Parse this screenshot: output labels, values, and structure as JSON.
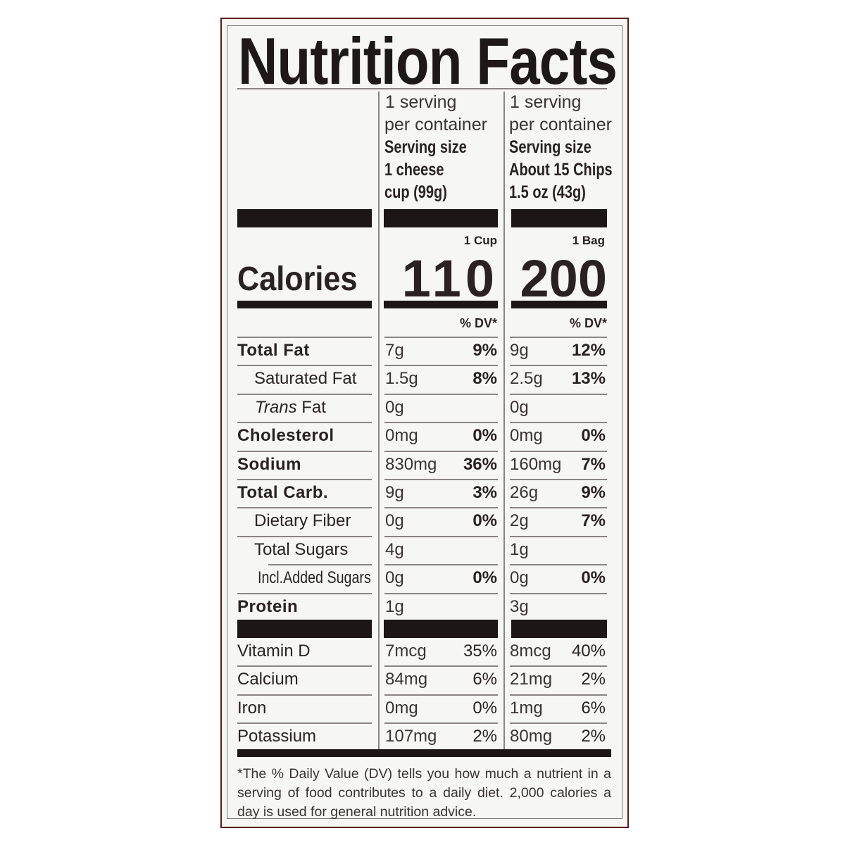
{
  "title": "Nutrition Facts",
  "columns": [
    {
      "servings": "1 serving",
      "per_container": "per container",
      "serving_size_label": "Serving size",
      "serving_size_line1": "1 cheese",
      "serving_size_line2": "cup (99g)",
      "unit": "1 Cup",
      "calories": "110",
      "dv_header": "% DV*"
    },
    {
      "servings": "1 serving",
      "per_container": "per container",
      "serving_size_label": "Serving size",
      "serving_size_line1": "About 15 Chips",
      "serving_size_line2": "1.5 oz (43g)",
      "unit": "1 Bag",
      "calories": "200",
      "dv_header": "% DV*"
    }
  ],
  "calories_label": "Calories",
  "nutrients": [
    {
      "label": "Total Fat",
      "style": "bold",
      "c1": "7g",
      "c1_dv": "9%",
      "c2": "9g",
      "c2_dv": "12%"
    },
    {
      "label": "Saturated Fat",
      "style": "indent",
      "c1": "1.5g",
      "c1_dv": "8%",
      "c2": "2.5g",
      "c2_dv": "13%"
    },
    {
      "label_italic": "Trans",
      "label": " Fat",
      "style": "trans",
      "c1": "0g",
      "c1_dv": "",
      "c2": "0g",
      "c2_dv": ""
    },
    {
      "label": "Cholesterol",
      "style": "bold",
      "c1": "0mg",
      "c1_dv": "0%",
      "c2": "0mg",
      "c2_dv": "0%"
    },
    {
      "label": "Sodium",
      "style": "bold",
      "c1": "830mg",
      "c1_dv": "36%",
      "c2": "160mg",
      "c2_dv": "7%"
    },
    {
      "label": "Total Carb.",
      "style": "bold",
      "c1": "9g",
      "c1_dv": "3%",
      "c2": "26g",
      "c2_dv": "9%"
    },
    {
      "label": "Dietary Fiber",
      "style": "indent",
      "c1": "0g",
      "c1_dv": "0%",
      "c2": "2g",
      "c2_dv": "7%"
    },
    {
      "label": "Total Sugars",
      "style": "indent",
      "c1": "4g",
      "c1_dv": "",
      "c2": "1g",
      "c2_dv": ""
    },
    {
      "label": "Incl.Added Sugars",
      "style": "subindent",
      "c1": "0g",
      "c1_dv": "0%",
      "c2": "0g",
      "c2_dv": "0%"
    },
    {
      "label": "Protein",
      "style": "bold",
      "c1": "1g",
      "c1_dv": "",
      "c2": "3g",
      "c2_dv": ""
    }
  ],
  "vitamins": [
    {
      "label": "Vitamin D",
      "c1": "7mcg",
      "c1_dv": "35%",
      "c2": "8mcg",
      "c2_dv": "40%"
    },
    {
      "label": "Calcium",
      "c1": "84mg",
      "c1_dv": "6%",
      "c2": "21mg",
      "c2_dv": "2%"
    },
    {
      "label": "Iron",
      "c1": "0mg",
      "c1_dv": "0%",
      "c2": "1mg",
      "c2_dv": "6%"
    },
    {
      "label": "Potassium",
      "c1": "107mg",
      "c1_dv": "2%",
      "c2": "80mg",
      "c2_dv": "2%"
    }
  ],
  "footnote": "*The % Daily Value (DV) tells you how much a nutrient in a serving of food contributes to a daily diet. 2,000 calories a day is used for general nutrition advice.",
  "colors": {
    "border": "#5b1c1c",
    "ink": "#1c1616",
    "background": "#f6f6f4"
  }
}
